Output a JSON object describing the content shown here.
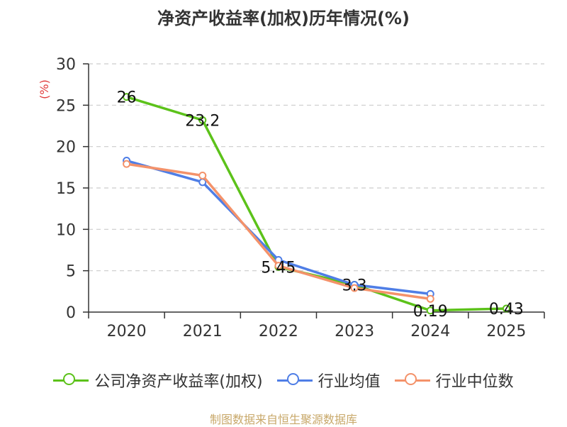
{
  "chart_data": {
    "type": "line",
    "title": "净资产收益率(加权)历年情况(%)",
    "ylabel": "(%)",
    "xlabel": "",
    "categories": [
      "2020",
      "2021",
      "2022",
      "2023",
      "2024",
      "2025"
    ],
    "ylim": [
      0,
      30
    ],
    "yticks": [
      "0",
      "5",
      "10",
      "15",
      "20",
      "25",
      "30"
    ],
    "grid": true,
    "legend": "bottom",
    "series": [
      {
        "name": "公司净资产收益率(加权)",
        "color": "#5cc21a",
        "values": [
          26,
          23.2,
          5.45,
          3.3,
          0.19,
          0.43
        ],
        "labels": [
          "26",
          "23.2",
          "5.45",
          "3.3",
          "0.19",
          "0.43"
        ]
      },
      {
        "name": "行业均值",
        "color": "#4f7ee6",
        "values": [
          18.3,
          15.7,
          6.3,
          3.3,
          2.2,
          null
        ]
      },
      {
        "name": "行业中位数",
        "color": "#f4926a",
        "values": [
          17.9,
          16.5,
          5.6,
          2.9,
          1.6,
          null
        ]
      }
    ],
    "source": "制图数据来自恒生聚源数据库"
  }
}
